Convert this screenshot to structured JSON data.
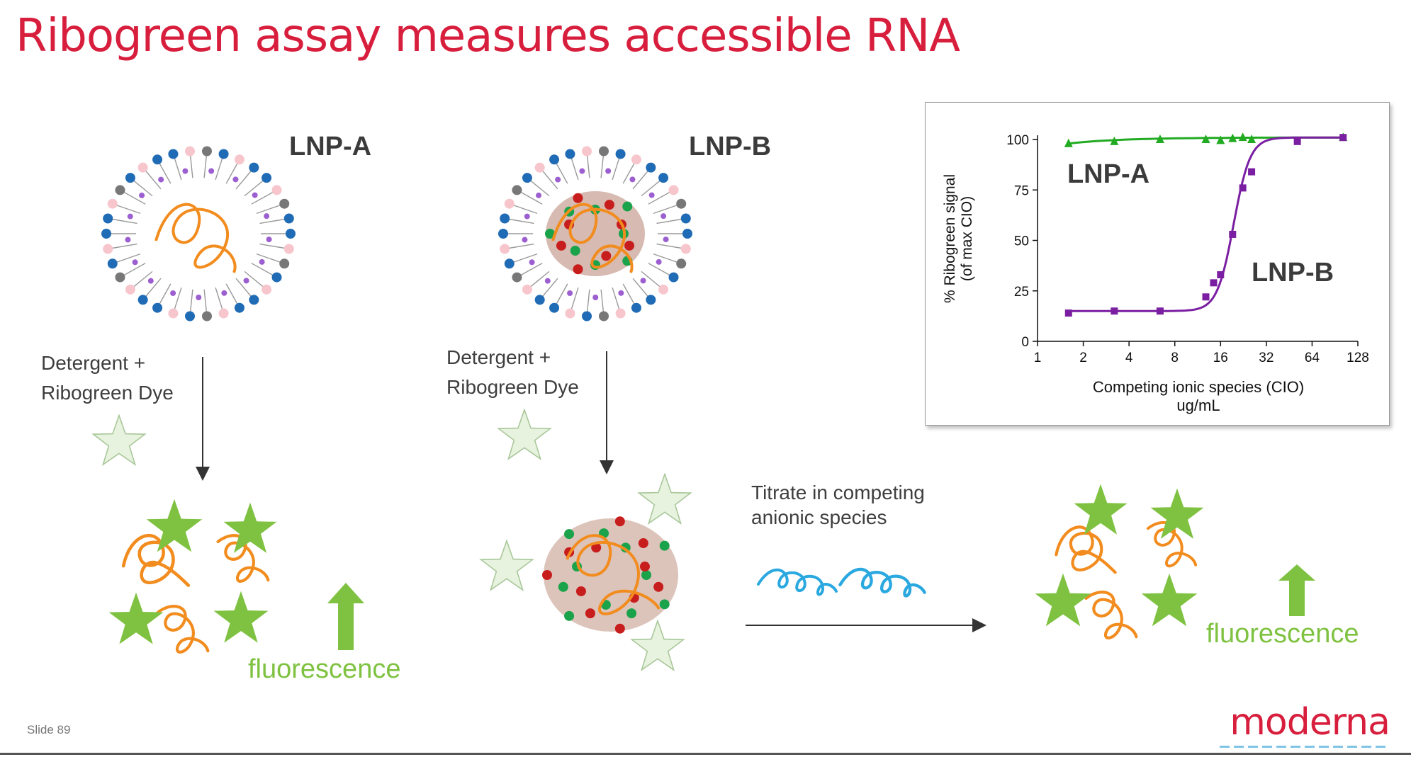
{
  "slide": {
    "title": "Ribogreen assay measures accessible RNA",
    "slide_number": "Slide 89",
    "logo": "moderna",
    "colors": {
      "title": "#d81e3d",
      "fluorescence": "#7fc241",
      "lnp_a_curve": "#22aa22",
      "lnp_b_curve": "#7b1fa2",
      "rna": "#f28c1e",
      "competitor": "#2aa8e0"
    }
  },
  "left_panel": {
    "lnp_label": "LNP-A",
    "reagent_line1": "Detergent +",
    "reagent_line2": "Ribogreen Dye",
    "result_label": "fluorescence"
  },
  "middle_panel": {
    "lnp_label": "LNP-B",
    "reagent_line1": "Detergent +",
    "reagent_line2": "Ribogreen Dye",
    "titrate_line1": "Titrate in competing",
    "titrate_line2": "anionic species"
  },
  "right_panel": {
    "result_label": "fluorescence"
  },
  "chart_data": {
    "type": "line",
    "ylabel_line1": "% Ribogreen signal",
    "ylabel_line2": "(of max CIO)",
    "xlabel_line1": "Competing ionic species (CIO)",
    "xlabel_line2": "ug/mL",
    "x_scale": "log2",
    "xlim": [
      1,
      128
    ],
    "ylim": [
      0,
      100
    ],
    "x_ticks": [
      1,
      2,
      4,
      8,
      16,
      32,
      64,
      128
    ],
    "y_ticks": [
      0,
      25,
      50,
      75,
      100
    ],
    "series": [
      {
        "name": "LNP-A",
        "marker": "triangle",
        "color": "#22aa22",
        "x": [
          1.6,
          3.2,
          6.4,
          12.8,
          16,
          19.2,
          22.4,
          25.6,
          102.4
        ],
        "y": [
          98,
          99,
          100,
          100,
          99.5,
          100.5,
          101,
          100,
          101
        ]
      },
      {
        "name": "LNP-B",
        "marker": "square",
        "color": "#7b1fa2",
        "x": [
          1.6,
          3.2,
          6.4,
          12.8,
          14.4,
          16,
          19.2,
          22.4,
          25.6,
          51.2,
          102.4
        ],
        "y": [
          14,
          15,
          15,
          22,
          29,
          33,
          53,
          76,
          84,
          99,
          101
        ]
      }
    ]
  }
}
